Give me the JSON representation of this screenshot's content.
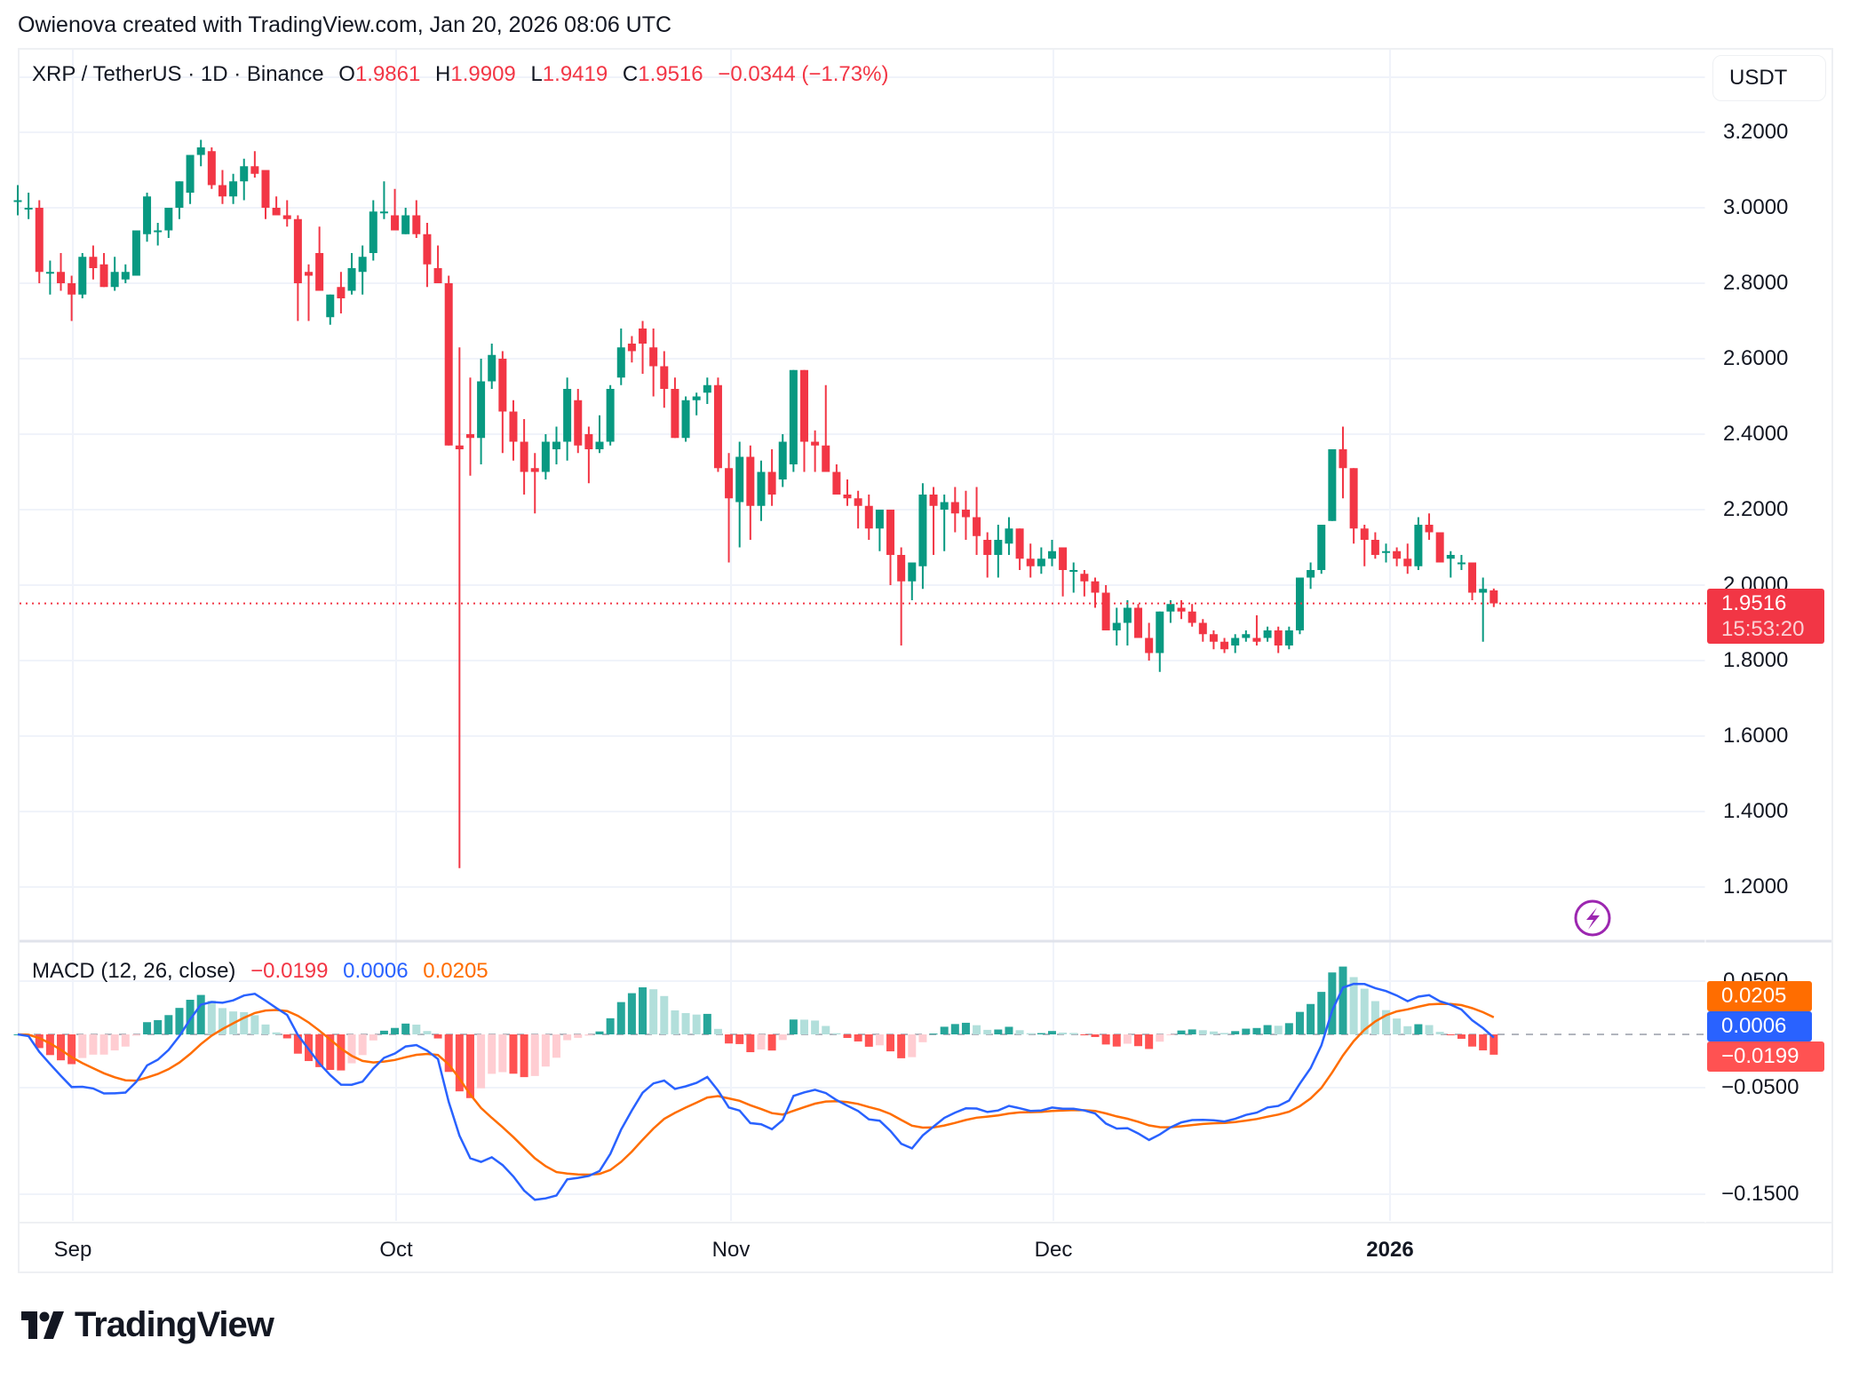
{
  "credit": "Owienova created with TradingView.com, Jan 20, 2026 08:06 UTC",
  "legend": {
    "symbol": "XRP / TetherUS · 1D · Binance",
    "o_label": "O",
    "o": "1.9861",
    "h_label": "H",
    "h": "1.9909",
    "l_label": "L",
    "l": "1.9419",
    "c_label": "C",
    "c": "1.9516",
    "change": "−0.0344 (−1.73%)"
  },
  "currency_button": "USDT",
  "price_tag": {
    "price": "1.9516",
    "countdown": "15:53:20"
  },
  "price_axis": [
    "3.2000",
    "3.0000",
    "2.8000",
    "2.6000",
    "2.4000",
    "2.2000",
    "2.0000",
    "1.8000",
    "1.6000",
    "1.4000",
    "1.2000"
  ],
  "macd": {
    "title": "MACD (12, 26, close)",
    "histogram": "−0.0199",
    "macd": "0.0006",
    "signal": "0.0205",
    "axis": [
      "0.0500",
      "−0.0500",
      "−0.1500"
    ],
    "tags": {
      "signal": "0.0205",
      "macd": "0.0006",
      "histogram": "−0.0199"
    }
  },
  "time_axis": [
    "Sep",
    "Oct",
    "Nov",
    "Dec",
    "2026"
  ],
  "logo_text": "TradingView",
  "colors": {
    "up": "#089981",
    "down": "#f23645",
    "macd_line": "#2962ff",
    "signal_line": "#ff6d00",
    "hist_up_strong": "#26a69a",
    "hist_up_weak": "#b2dfdb",
    "hist_down_strong": "#ff5252",
    "hist_down_weak": "#ffcdd2",
    "alert_icon": "#9c27b0"
  },
  "chart_data": {
    "type": "candlestick",
    "title": "XRP / TetherUS · 1D · Binance",
    "ylabel": "USDT",
    "ylim": [
      1.1,
      3.3
    ],
    "start_date": "2025-08-27",
    "end_date": "2026-01-20",
    "x_ticks": [
      "Sep",
      "Oct",
      "Nov",
      "Dec",
      "2026"
    ],
    "y_ticks": [
      3.2,
      3.0,
      2.8,
      2.6,
      2.4,
      2.2,
      2.0,
      1.8,
      1.6,
      1.4,
      1.2
    ],
    "last_price": 1.9516,
    "ohlc": [
      [
        3.02,
        3.06,
        2.98,
        3.02
      ],
      [
        3.0,
        3.04,
        2.97,
        3.0
      ],
      [
        3.0,
        3.02,
        2.8,
        2.83
      ],
      [
        2.83,
        2.86,
        2.77,
        2.83
      ],
      [
        2.83,
        2.88,
        2.78,
        2.8
      ],
      [
        2.8,
        2.82,
        2.7,
        2.77
      ],
      [
        2.77,
        2.88,
        2.76,
        2.87
      ],
      [
        2.87,
        2.9,
        2.81,
        2.84
      ],
      [
        2.85,
        2.88,
        2.79,
        2.79
      ],
      [
        2.79,
        2.87,
        2.78,
        2.83
      ],
      [
        2.81,
        2.85,
        2.8,
        2.83
      ],
      [
        2.82,
        2.94,
        2.82,
        2.94
      ],
      [
        2.93,
        3.04,
        2.91,
        3.03
      ],
      [
        2.94,
        2.96,
        2.9,
        2.94
      ],
      [
        2.94,
        3.0,
        2.92,
        3.0
      ],
      [
        3.0,
        3.07,
        2.97,
        3.07
      ],
      [
        3.04,
        3.14,
        3.01,
        3.14
      ],
      [
        3.14,
        3.18,
        3.11,
        3.16
      ],
      [
        3.15,
        3.16,
        3.05,
        3.06
      ],
      [
        3.06,
        3.1,
        3.01,
        3.03
      ],
      [
        3.03,
        3.09,
        3.01,
        3.07
      ],
      [
        3.07,
        3.13,
        3.02,
        3.11
      ],
      [
        3.11,
        3.15,
        3.08,
        3.09
      ],
      [
        3.1,
        3.1,
        2.97,
        3.0
      ],
      [
        3.0,
        3.03,
        2.99,
        2.98
      ],
      [
        2.98,
        3.02,
        2.95,
        2.97
      ],
      [
        2.97,
        2.98,
        2.7,
        2.8
      ],
      [
        2.83,
        2.85,
        2.7,
        2.82
      ],
      [
        2.88,
        2.95,
        2.78,
        2.78
      ],
      [
        2.71,
        2.76,
        2.69,
        2.77
      ],
      [
        2.79,
        2.83,
        2.72,
        2.76
      ],
      [
        2.78,
        2.88,
        2.77,
        2.84
      ],
      [
        2.83,
        2.9,
        2.77,
        2.87
      ],
      [
        2.88,
        3.02,
        2.86,
        2.99
      ],
      [
        2.99,
        3.07,
        2.97,
        2.99
      ],
      [
        2.98,
        3.05,
        2.96,
        2.94
      ],
      [
        2.93,
        3.0,
        2.93,
        2.98
      ],
      [
        2.98,
        3.02,
        2.92,
        2.93
      ],
      [
        2.93,
        2.96,
        2.79,
        2.85
      ],
      [
        2.84,
        2.9,
        2.82,
        2.8
      ],
      [
        2.8,
        2.82,
        2.37,
        2.37
      ],
      [
        2.37,
        2.63,
        1.25,
        2.36
      ],
      [
        2.4,
        2.55,
        2.29,
        2.39
      ],
      [
        2.39,
        2.6,
        2.32,
        2.54
      ],
      [
        2.54,
        2.64,
        2.52,
        2.61
      ],
      [
        2.6,
        2.62,
        2.35,
        2.46
      ],
      [
        2.46,
        2.49,
        2.33,
        2.38
      ],
      [
        2.38,
        2.44,
        2.24,
        2.3
      ],
      [
        2.31,
        2.35,
        2.19,
        2.3
      ],
      [
        2.3,
        2.4,
        2.28,
        2.38
      ],
      [
        2.36,
        2.42,
        2.32,
        2.38
      ],
      [
        2.38,
        2.55,
        2.33,
        2.52
      ],
      [
        2.49,
        2.52,
        2.35,
        2.37
      ],
      [
        2.4,
        2.42,
        2.27,
        2.36
      ],
      [
        2.36,
        2.45,
        2.35,
        2.38
      ],
      [
        2.38,
        2.53,
        2.37,
        2.52
      ],
      [
        2.55,
        2.68,
        2.53,
        2.63
      ],
      [
        2.64,
        2.66,
        2.59,
        2.62
      ],
      [
        2.68,
        2.7,
        2.56,
        2.64
      ],
      [
        2.63,
        2.68,
        2.5,
        2.58
      ],
      [
        2.58,
        2.62,
        2.47,
        2.52
      ],
      [
        2.52,
        2.55,
        2.39,
        2.39
      ],
      [
        2.39,
        2.5,
        2.38,
        2.49
      ],
      [
        2.49,
        2.51,
        2.45,
        2.5
      ],
      [
        2.51,
        2.55,
        2.48,
        2.53
      ],
      [
        2.53,
        2.55,
        2.3,
        2.31
      ],
      [
        2.31,
        2.35,
        2.06,
        2.23
      ],
      [
        2.22,
        2.38,
        2.1,
        2.34
      ],
      [
        2.34,
        2.37,
        2.12,
        2.21
      ],
      [
        2.21,
        2.33,
        2.17,
        2.3
      ],
      [
        2.3,
        2.36,
        2.21,
        2.24
      ],
      [
        2.28,
        2.4,
        2.26,
        2.38
      ],
      [
        2.32,
        2.57,
        2.3,
        2.57
      ],
      [
        2.57,
        2.55,
        2.3,
        2.38
      ],
      [
        2.38,
        2.41,
        2.3,
        2.37
      ],
      [
        2.37,
        2.53,
        2.3,
        2.3
      ],
      [
        2.3,
        2.32,
        2.24,
        2.24
      ],
      [
        2.24,
        2.28,
        2.21,
        2.23
      ],
      [
        2.23,
        2.25,
        2.15,
        2.21
      ],
      [
        2.21,
        2.24,
        2.12,
        2.15
      ],
      [
        2.15,
        2.2,
        2.09,
        2.2
      ],
      [
        2.2,
        2.2,
        2.0,
        2.08
      ],
      [
        2.08,
        2.1,
        1.84,
        2.01
      ],
      [
        2.01,
        2.06,
        1.96,
        2.06
      ],
      [
        2.05,
        2.27,
        1.99,
        2.24
      ],
      [
        2.24,
        2.26,
        2.08,
        2.21
      ],
      [
        2.2,
        2.24,
        2.09,
        2.22
      ],
      [
        2.22,
        2.26,
        2.14,
        2.19
      ],
      [
        2.2,
        2.25,
        2.12,
        2.18
      ],
      [
        2.18,
        2.26,
        2.08,
        2.13
      ],
      [
        2.12,
        2.14,
        2.02,
        2.08
      ],
      [
        2.08,
        2.16,
        2.02,
        2.12
      ],
      [
        2.11,
        2.18,
        2.08,
        2.15
      ],
      [
        2.15,
        2.12,
        2.04,
        2.07
      ],
      [
        2.07,
        2.11,
        2.02,
        2.05
      ],
      [
        2.05,
        2.1,
        2.03,
        2.07
      ],
      [
        2.07,
        2.12,
        2.05,
        2.09
      ],
      [
        2.1,
        2.08,
        1.97,
        2.04
      ],
      [
        2.04,
        2.06,
        1.98,
        2.04
      ],
      [
        2.03,
        2.04,
        1.97,
        2.01
      ],
      [
        2.01,
        2.02,
        1.94,
        1.98
      ],
      [
        1.98,
        2.0,
        1.9,
        1.88
      ],
      [
        1.88,
        1.94,
        1.84,
        1.9
      ],
      [
        1.9,
        1.96,
        1.84,
        1.94
      ],
      [
        1.94,
        1.95,
        1.88,
        1.86
      ],
      [
        1.86,
        1.9,
        1.8,
        1.82
      ],
      [
        1.82,
        1.92,
        1.77,
        1.93
      ],
      [
        1.93,
        1.96,
        1.9,
        1.95
      ],
      [
        1.94,
        1.96,
        1.91,
        1.93
      ],
      [
        1.93,
        1.95,
        1.89,
        1.9
      ],
      [
        1.9,
        1.91,
        1.85,
        1.87
      ],
      [
        1.87,
        1.88,
        1.83,
        1.85
      ],
      [
        1.85,
        1.86,
        1.82,
        1.83
      ],
      [
        1.84,
        1.87,
        1.82,
        1.86
      ],
      [
        1.86,
        1.88,
        1.85,
        1.87
      ],
      [
        1.86,
        1.92,
        1.84,
        1.85
      ],
      [
        1.86,
        1.89,
        1.85,
        1.88
      ],
      [
        1.88,
        1.89,
        1.82,
        1.84
      ],
      [
        1.84,
        1.89,
        1.83,
        1.88
      ],
      [
        1.88,
        2.01,
        1.87,
        2.02
      ],
      [
        2.02,
        2.06,
        1.99,
        2.04
      ],
      [
        2.04,
        2.12,
        2.03,
        2.16
      ],
      [
        2.17,
        2.35,
        2.17,
        2.36
      ],
      [
        2.36,
        2.42,
        2.23,
        2.31
      ],
      [
        2.31,
        2.27,
        2.11,
        2.15
      ],
      [
        2.15,
        2.16,
        2.05,
        2.12
      ],
      [
        2.12,
        2.14,
        2.07,
        2.08
      ],
      [
        2.09,
        2.11,
        2.06,
        2.09
      ],
      [
        2.09,
        2.1,
        2.05,
        2.07
      ],
      [
        2.07,
        2.11,
        2.03,
        2.05
      ],
      [
        2.05,
        2.18,
        2.04,
        2.16
      ],
      [
        2.16,
        2.19,
        2.12,
        2.14
      ],
      [
        2.14,
        2.14,
        2.07,
        2.06
      ],
      [
        2.07,
        2.09,
        2.02,
        2.08
      ],
      [
        2.06,
        2.08,
        2.04,
        2.06
      ],
      [
        2.06,
        2.06,
        1.96,
        1.98
      ],
      [
        1.98,
        2.02,
        1.85,
        1.99
      ],
      [
        1.9861,
        1.9909,
        1.9419,
        1.9516
      ]
    ]
  }
}
